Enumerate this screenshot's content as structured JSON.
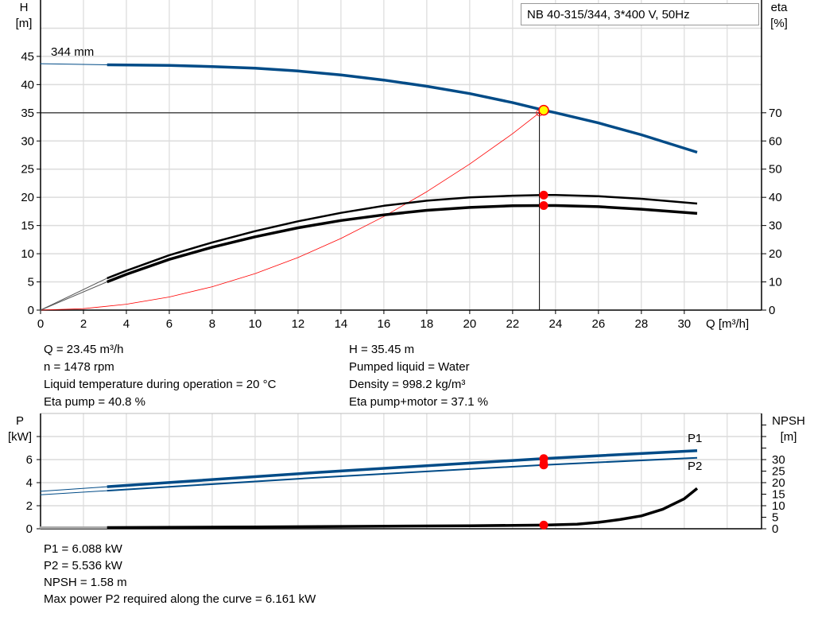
{
  "chart_data": [
    {
      "type": "line",
      "title_box": "NB 40-315/344, 3*400 V, 50Hz",
      "xlabel": "Q [m³/h]",
      "ylabel_left": [
        "H",
        "[m]"
      ],
      "ylabel_right": [
        "eta",
        "[%]"
      ],
      "xlim": [
        0,
        33.6
      ],
      "ylim_left": [
        0,
        55
      ],
      "ylim_right": [
        0,
        110
      ],
      "xticks": [
        0,
        2,
        4,
        6,
        8,
        10,
        12,
        14,
        16,
        18,
        20,
        22,
        24,
        26,
        28,
        30
      ],
      "yticks_left": [
        0,
        5,
        10,
        15,
        20,
        25,
        30,
        35,
        40,
        45
      ],
      "yticks_right": [
        0,
        10,
        20,
        30,
        40,
        50,
        60,
        70
      ],
      "grid": true,
      "curve_label": "344 mm",
      "series": {
        "head": {
          "axis": "left",
          "color": "#004b87",
          "extrapolated": [
            [
              0,
              43.7
            ],
            [
              3.1,
              43.5
            ]
          ],
          "values": [
            [
              3.1,
              43.5
            ],
            [
              6,
              43.4
            ],
            [
              8,
              43.2
            ],
            [
              10,
              42.9
            ],
            [
              12,
              42.4
            ],
            [
              14,
              41.7
            ],
            [
              16,
              40.8
            ],
            [
              18,
              39.7
            ],
            [
              20,
              38.4
            ],
            [
              22,
              36.8
            ],
            [
              23.45,
              35.45
            ],
            [
              24,
              35
            ],
            [
              26,
              33.2
            ],
            [
              28,
              31.1
            ],
            [
              30.6,
              28
            ]
          ]
        },
        "eta_pump": {
          "axis": "right",
          "color": "#000000",
          "extrapolated": [
            [
              0,
              0
            ],
            [
              3.1,
              11.3
            ]
          ],
          "values": [
            [
              3.1,
              11.3
            ],
            [
              4,
              14
            ],
            [
              6,
              19.5
            ],
            [
              8,
              24
            ],
            [
              10,
              28
            ],
            [
              12,
              31.5
            ],
            [
              14,
              34.5
            ],
            [
              16,
              37
            ],
            [
              18,
              38.8
            ],
            [
              20,
              40
            ],
            [
              22,
              40.6
            ],
            [
              23.45,
              40.8
            ],
            [
              24,
              40.8
            ],
            [
              26,
              40.4
            ],
            [
              28,
              39.5
            ],
            [
              30.6,
              37.8
            ]
          ]
        },
        "eta_pump_motor": {
          "axis": "right",
          "color": "#000000",
          "extrapolated": [
            [
              0,
              0
            ],
            [
              3.1,
              10
            ]
          ],
          "values": [
            [
              3.1,
              10
            ],
            [
              4,
              12.7
            ],
            [
              6,
              18
            ],
            [
              8,
              22.3
            ],
            [
              10,
              26
            ],
            [
              12,
              29.2
            ],
            [
              14,
              31.8
            ],
            [
              16,
              33.8
            ],
            [
              18,
              35.4
            ],
            [
              20,
              36.4
            ],
            [
              22,
              37
            ],
            [
              23.45,
              37.1
            ],
            [
              24,
              37.1
            ],
            [
              26,
              36.7
            ],
            [
              28,
              35.8
            ],
            [
              30.6,
              34.3
            ]
          ]
        },
        "system_curve": {
          "axis": "left",
          "color": "#ff0000",
          "values": [
            [
              0,
              0
            ],
            [
              2,
              0.26
            ],
            [
              4,
              1.04
            ],
            [
              6,
              2.33
            ],
            [
              8,
              4.14
            ],
            [
              10,
              6.47
            ],
            [
              12,
              9.32
            ],
            [
              14,
              12.7
            ],
            [
              16,
              16.6
            ],
            [
              18,
              21.0
            ],
            [
              20,
              25.9
            ],
            [
              22,
              31.3
            ],
            [
              23.25,
              35.0
            ]
          ]
        }
      },
      "duty_point": {
        "Q": 23.45,
        "H": 35.45,
        "eta_pump": 40.8,
        "eta_pump_motor": 37.1
      },
      "requested_point": {
        "Q": 23.25,
        "H": 35.0
      }
    },
    {
      "type": "line",
      "ylabel_left": [
        "P",
        "[kW]"
      ],
      "ylabel_right": [
        "NPSH",
        "[m]"
      ],
      "xlim": [
        0,
        33.6
      ],
      "ylim_left": [
        0,
        10
      ],
      "ylim_right": [
        0,
        50
      ],
      "yticks_left": [
        0,
        2,
        4,
        6
      ],
      "yticks_right": [
        0,
        5,
        10,
        15,
        20,
        25,
        30
      ],
      "grid": true,
      "series": {
        "P1": {
          "name": "P1",
          "axis": "left",
          "color": "#004b87",
          "extrapolated": [
            [
              0,
              3.25
            ],
            [
              3.1,
              3.65
            ]
          ],
          "values": [
            [
              3.1,
              3.65
            ],
            [
              13,
              4.9
            ],
            [
              23.45,
              6.088
            ],
            [
              30.6,
              6.78
            ]
          ]
        },
        "P2": {
          "name": "P2",
          "axis": "left",
          "color": "#004b87",
          "extrapolated": [
            [
              0,
              2.95
            ],
            [
              3.1,
              3.3
            ]
          ],
          "values": [
            [
              3.1,
              3.3
            ],
            [
              13,
              4.45
            ],
            [
              23.45,
              5.536
            ],
            [
              30.6,
              6.161
            ]
          ]
        },
        "NPSH": {
          "axis": "right",
          "color": "#000000",
          "extrapolated": [
            [
              0,
              0.5
            ],
            [
              3.1,
              0.5
            ]
          ],
          "values": [
            [
              3.1,
              0.5
            ],
            [
              10,
              0.8
            ],
            [
              20,
              1.3
            ],
            [
              23.45,
              1.58
            ],
            [
              25,
              2.0
            ],
            [
              26,
              2.8
            ],
            [
              27,
              4
            ],
            [
              28,
              5.6
            ],
            [
              29,
              8.5
            ],
            [
              30,
              13
            ],
            [
              30.6,
              17.5
            ]
          ]
        }
      },
      "duty_point": {
        "Q": 23.45,
        "P1": 6.088,
        "P2": 5.536,
        "NPSH": 1.58
      }
    }
  ],
  "info_top": {
    "left": [
      "Q = 23.45 m³/h",
      "n = 1478 rpm",
      "Liquid temperature during operation = 20 °C",
      "Eta pump = 40.8 %"
    ],
    "right": [
      "H = 35.45 m",
      "Pumped liquid = Water",
      "Density = 998.2 kg/m³",
      "Eta pump+motor = 37.1 %"
    ]
  },
  "info_bottom": [
    "P1 = 6.088 kW",
    "P2 = 5.536 kW",
    "NPSH = 1.58 m",
    "Max power P2 required along the curve = 6.161 kW"
  ]
}
